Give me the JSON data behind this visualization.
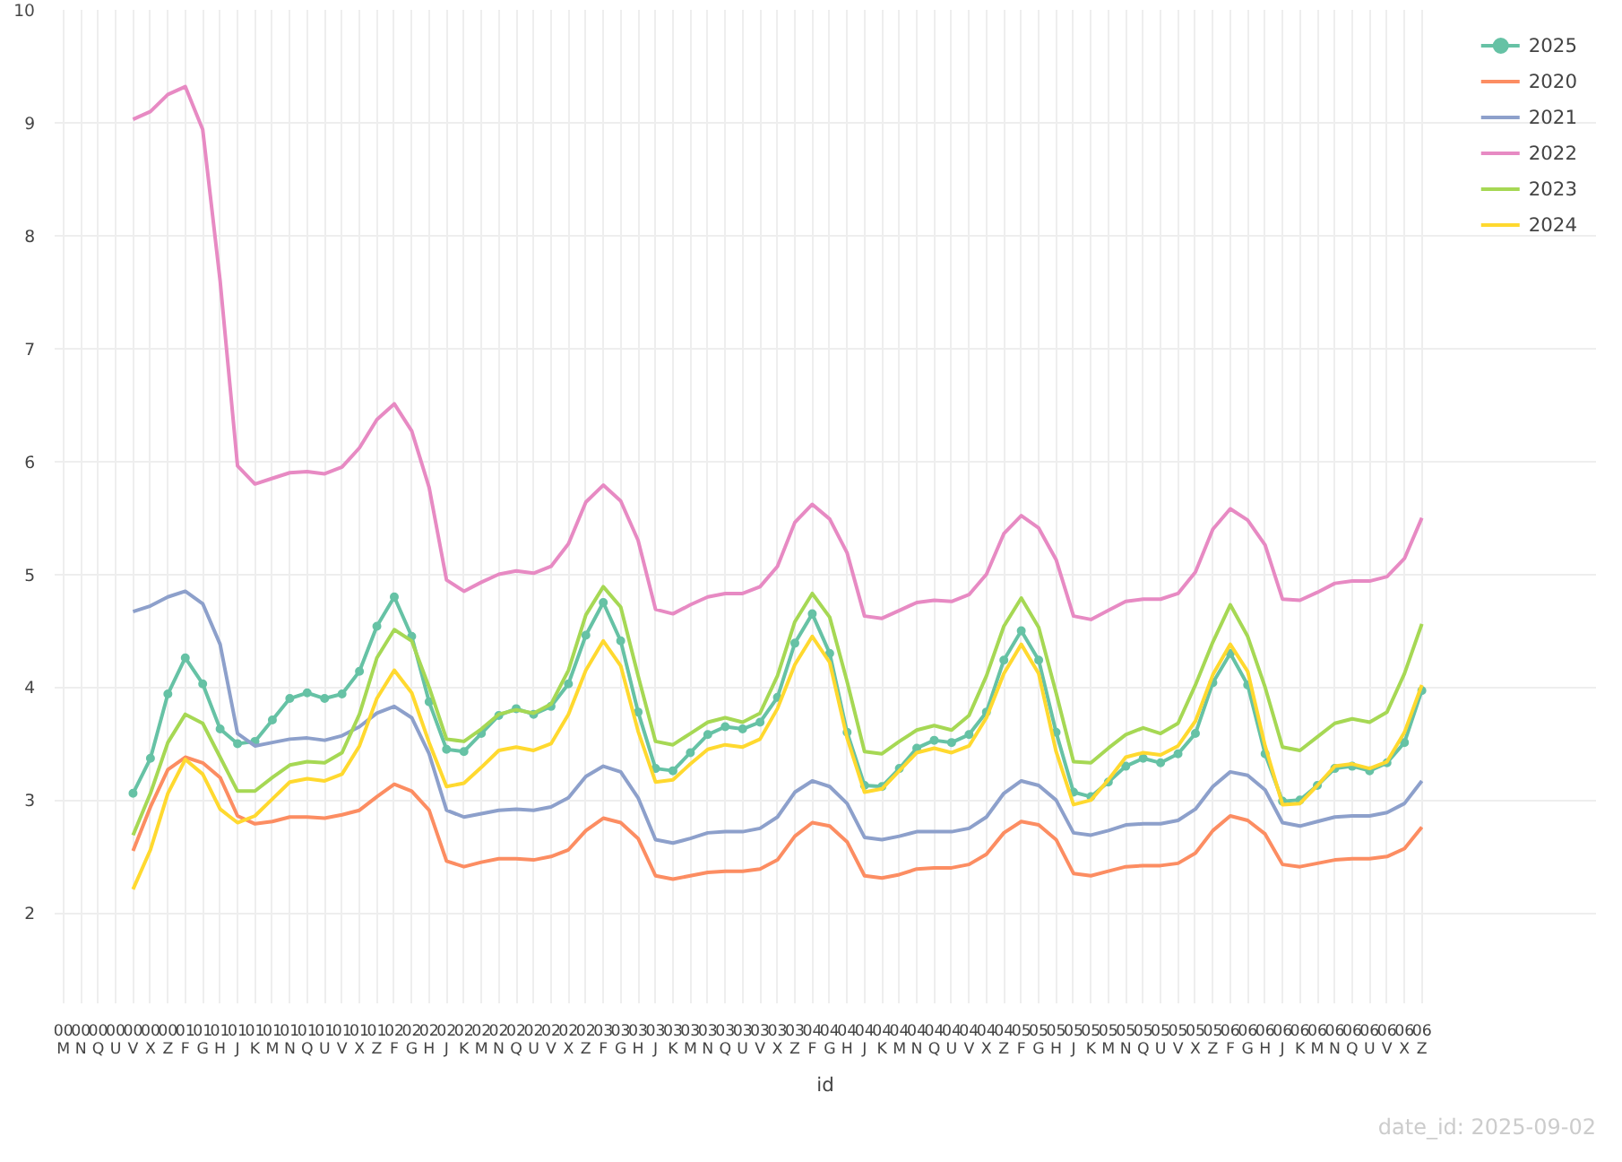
{
  "chart_data": {
    "type": "line",
    "xlabel": "id",
    "categories": [
      "00\nM",
      "00\nN",
      "00\nQ",
      "00\nU",
      "00\nV",
      "00\nX",
      "00\nZ",
      "01\nF",
      "01\nG",
      "01\nH",
      "01\nJ",
      "01\nK",
      "01\nM",
      "01\nN",
      "01\nQ",
      "01\nU",
      "01\nV",
      "01\nX",
      "01\nZ",
      "02\nF",
      "02\nG",
      "02\nH",
      "02\nJ",
      "02\nK",
      "02\nM",
      "02\nN",
      "02\nQ",
      "02\nU",
      "02\nV",
      "02\nX",
      "02\nZ",
      "03\nF",
      "03\nG",
      "03\nH",
      "03\nJ",
      "03\nK",
      "03\nM",
      "03\nN",
      "03\nQ",
      "03\nU",
      "03\nV",
      "03\nX",
      "03\nZ",
      "04\nF",
      "04\nG",
      "04\nH",
      "04\nJ",
      "04\nK",
      "04\nM",
      "04\nN",
      "04\nQ",
      "04\nU",
      "04\nV",
      "04\nX",
      "04\nZ",
      "05\nF",
      "05\nG",
      "05\nH",
      "05\nJ",
      "05\nK",
      "05\nM",
      "05\nN",
      "05\nQ",
      "05\nU",
      "05\nV",
      "05\nX",
      "05\nZ",
      "06\nF",
      "06\nG",
      "06\nH",
      "06\nJ",
      "06\nK",
      "06\nM",
      "06\nN",
      "06\nQ",
      "06\nU",
      "06\nV",
      "06\nX",
      "06\nZ"
    ],
    "series": [
      {
        "name": "2025",
        "color": "#66c2a5",
        "marker": "circle",
        "values": [
          null,
          null,
          null,
          null,
          3.06,
          3.37,
          3.94,
          4.26,
          4.03,
          3.63,
          3.5,
          3.52,
          3.71,
          3.9,
          3.95,
          3.9,
          3.94,
          4.14,
          4.54,
          4.8,
          4.45,
          3.87,
          3.45,
          3.43,
          3.59,
          3.75,
          3.81,
          3.76,
          3.83,
          4.03,
          4.46,
          4.75,
          4.41,
          3.78,
          3.28,
          3.26,
          3.42,
          3.58,
          3.65,
          3.63,
          3.69,
          3.91,
          4.39,
          4.65,
          4.3,
          3.6,
          3.13,
          3.12,
          3.28,
          3.46,
          3.53,
          3.51,
          3.58,
          3.78,
          4.24,
          4.5,
          4.24,
          3.6,
          3.07,
          3.03,
          3.16,
          3.3,
          3.37,
          3.33,
          3.41,
          3.59,
          4.04,
          4.3,
          4.02,
          3.41,
          2.99,
          3.0,
          3.13,
          3.28,
          3.3,
          3.26,
          3.33,
          3.51,
          3.97
        ]
      },
      {
        "name": "2020",
        "color": "#fc8d62",
        "values": [
          null,
          null,
          null,
          null,
          2.55,
          2.94,
          3.27,
          3.38,
          3.33,
          3.2,
          2.86,
          2.79,
          2.81,
          2.85,
          2.85,
          2.84,
          2.87,
          2.91,
          3.03,
          3.14,
          3.08,
          2.91,
          2.46,
          2.41,
          2.45,
          2.48,
          2.48,
          2.47,
          2.5,
          2.56,
          2.73,
          2.84,
          2.8,
          2.66,
          2.33,
          2.3,
          2.33,
          2.36,
          2.37,
          2.37,
          2.39,
          2.47,
          2.68,
          2.8,
          2.77,
          2.63,
          2.33,
          2.31,
          2.34,
          2.39,
          2.4,
          2.4,
          2.43,
          2.52,
          2.71,
          2.81,
          2.78,
          2.65,
          2.35,
          2.33,
          2.37,
          2.41,
          2.42,
          2.42,
          2.44,
          2.53,
          2.73,
          2.86,
          2.82,
          2.7,
          2.43,
          2.41,
          2.44,
          2.47,
          2.48,
          2.48,
          2.5,
          2.57,
          2.76
        ]
      },
      {
        "name": "2021",
        "color": "#8da0cb",
        "values": [
          null,
          null,
          null,
          null,
          4.67,
          4.72,
          4.8,
          4.85,
          4.74,
          4.38,
          3.59,
          3.48,
          3.51,
          3.54,
          3.55,
          3.53,
          3.57,
          3.65,
          3.77,
          3.83,
          3.73,
          3.41,
          2.91,
          2.85,
          2.88,
          2.91,
          2.92,
          2.91,
          2.94,
          3.02,
          3.21,
          3.3,
          3.25,
          3.02,
          2.65,
          2.62,
          2.66,
          2.71,
          2.72,
          2.72,
          2.75,
          2.85,
          3.07,
          3.17,
          3.12,
          2.97,
          2.67,
          2.65,
          2.68,
          2.72,
          2.72,
          2.72,
          2.75,
          2.85,
          3.06,
          3.17,
          3.13,
          3.0,
          2.71,
          2.69,
          2.73,
          2.78,
          2.79,
          2.79,
          2.82,
          2.92,
          3.12,
          3.25,
          3.22,
          3.09,
          2.8,
          2.77,
          2.81,
          2.85,
          2.86,
          2.86,
          2.89,
          2.97,
          3.17
        ]
      },
      {
        "name": "2022",
        "color": "#e78ac3",
        "values": [
          null,
          null,
          null,
          null,
          9.03,
          9.1,
          9.25,
          9.32,
          8.94,
          7.6,
          5.96,
          5.8,
          5.85,
          5.9,
          5.91,
          5.89,
          5.95,
          6.12,
          6.37,
          6.51,
          6.27,
          5.77,
          4.95,
          4.85,
          4.93,
          5.0,
          5.03,
          5.01,
          5.07,
          5.27,
          5.64,
          5.79,
          5.65,
          5.3,
          4.69,
          4.65,
          4.73,
          4.8,
          4.83,
          4.83,
          4.89,
          5.07,
          5.46,
          5.62,
          5.49,
          5.19,
          4.63,
          4.61,
          4.68,
          4.75,
          4.77,
          4.76,
          4.82,
          5.0,
          5.36,
          5.52,
          5.41,
          5.13,
          4.63,
          4.6,
          4.68,
          4.76,
          4.78,
          4.78,
          4.83,
          5.02,
          5.4,
          5.58,
          5.48,
          5.26,
          4.78,
          4.77,
          4.84,
          4.92,
          4.94,
          4.94,
          4.98,
          5.14,
          5.5
        ]
      },
      {
        "name": "2023",
        "color": "#a6d854",
        "values": [
          null,
          null,
          null,
          null,
          2.69,
          3.06,
          3.51,
          3.76,
          3.68,
          3.38,
          3.08,
          3.08,
          3.2,
          3.31,
          3.34,
          3.33,
          3.42,
          3.76,
          4.26,
          4.51,
          4.41,
          4.0,
          3.54,
          3.52,
          3.63,
          3.76,
          3.8,
          3.77,
          3.85,
          4.15,
          4.64,
          4.89,
          4.71,
          4.1,
          3.52,
          3.49,
          3.59,
          3.69,
          3.73,
          3.69,
          3.77,
          4.1,
          4.58,
          4.83,
          4.62,
          4.05,
          3.43,
          3.41,
          3.52,
          3.62,
          3.66,
          3.62,
          3.75,
          4.1,
          4.54,
          4.79,
          4.53,
          3.95,
          3.34,
          3.33,
          3.46,
          3.58,
          3.64,
          3.59,
          3.68,
          4.02,
          4.4,
          4.73,
          4.45,
          4.0,
          3.47,
          3.44,
          3.56,
          3.68,
          3.72,
          3.69,
          3.78,
          4.12,
          4.56
        ]
      },
      {
        "name": "2024",
        "color": "#ffd92f",
        "values": [
          null,
          null,
          null,
          null,
          2.21,
          2.56,
          3.06,
          3.36,
          3.23,
          2.92,
          2.8,
          2.86,
          3.01,
          3.16,
          3.19,
          3.17,
          3.23,
          3.48,
          3.9,
          4.15,
          3.95,
          3.51,
          3.12,
          3.15,
          3.29,
          3.44,
          3.47,
          3.44,
          3.5,
          3.76,
          4.15,
          4.41,
          4.19,
          3.61,
          3.16,
          3.18,
          3.32,
          3.45,
          3.49,
          3.47,
          3.54,
          3.81,
          4.2,
          4.45,
          4.22,
          3.55,
          3.07,
          3.1,
          3.26,
          3.42,
          3.46,
          3.42,
          3.48,
          3.73,
          4.12,
          4.38,
          4.12,
          3.43,
          2.96,
          3.0,
          3.18,
          3.38,
          3.42,
          3.4,
          3.48,
          3.7,
          4.11,
          4.38,
          4.14,
          3.48,
          2.96,
          2.97,
          3.13,
          3.3,
          3.32,
          3.28,
          3.34,
          3.6,
          4.02
        ]
      }
    ],
    "ylim": [
      1.2,
      10
    ],
    "yticks": [
      2,
      3,
      4,
      5,
      6,
      7,
      8,
      9,
      10
    ],
    "grid": true,
    "legend": "top right",
    "line_style": "solid",
    "annotations": [
      "date_id: 2025-09-02"
    ]
  }
}
